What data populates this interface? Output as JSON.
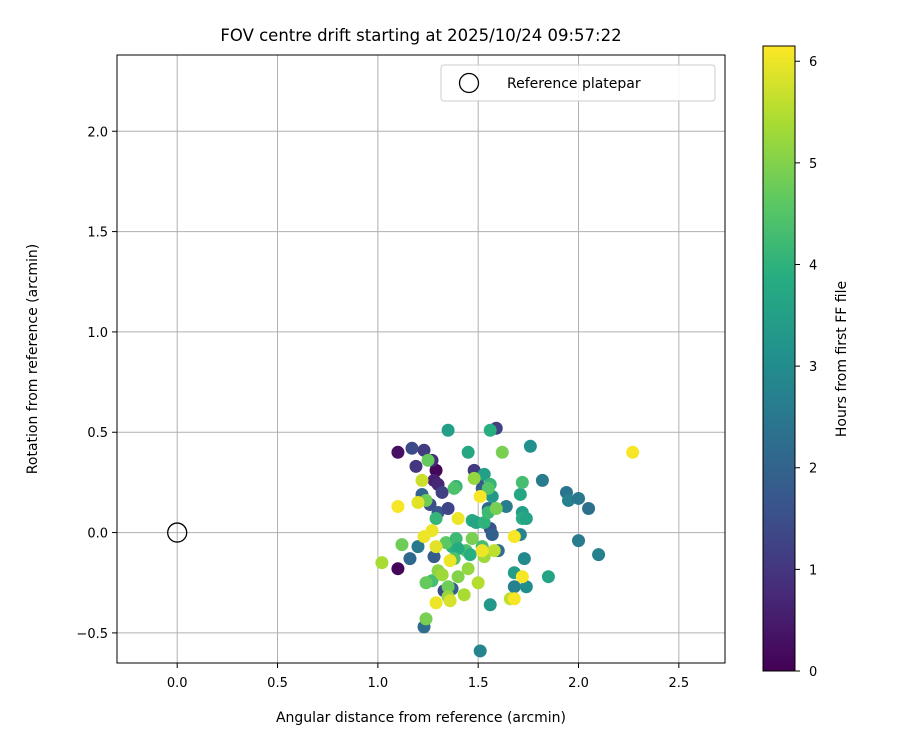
{
  "chart_data": {
    "type": "scatter",
    "title": "FOV centre drift starting at 2025/10/24 09:57:22",
    "xlabel": "Angular distance from reference (arcmin)",
    "ylabel": "Rotation from reference (arcmin)",
    "xlim": [
      -0.3,
      2.73
    ],
    "ylim": [
      -0.65,
      2.38
    ],
    "xticks": [
      0.0,
      0.5,
      1.0,
      1.5,
      2.0,
      2.5
    ],
    "xtick_labels": [
      "0.0",
      "0.5",
      "1.0",
      "1.5",
      "2.0",
      "2.5"
    ],
    "yticks": [
      -0.5,
      0.0,
      0.5,
      1.0,
      1.5,
      2.0
    ],
    "ytick_labels": [
      "−0.5",
      "0.0",
      "0.5",
      "1.0",
      "1.5",
      "2.0"
    ],
    "grid": true,
    "colormap": "viridis",
    "colorbar": {
      "label": "Hours from first FF file",
      "range": [
        0,
        6.15
      ],
      "ticks": [
        0,
        1,
        2,
        3,
        4,
        5,
        6
      ],
      "tick_labels": [
        "0",
        "1",
        "2",
        "3",
        "4",
        "5",
        "6"
      ]
    },
    "legend": {
      "placement": "top-right",
      "entries": [
        {
          "marker": "open-circle",
          "label": "Reference platepar"
        }
      ]
    },
    "reference_point": {
      "x": 0.0,
      "y": 0.0
    },
    "points": [
      {
        "x": 1.1,
        "y": 0.4,
        "h": 0.3
      },
      {
        "x": 1.1,
        "y": -0.18,
        "h": 0.1
      },
      {
        "x": 1.29,
        "y": 0.31,
        "h": 0.1
      },
      {
        "x": 1.17,
        "y": 0.42,
        "h": 1.4
      },
      {
        "x": 1.23,
        "y": 0.41,
        "h": 1.1
      },
      {
        "x": 1.27,
        "y": 0.36,
        "h": 0.8
      },
      {
        "x": 1.19,
        "y": 0.33,
        "h": 1.0
      },
      {
        "x": 1.28,
        "y": 0.26,
        "h": 0.6
      },
      {
        "x": 1.3,
        "y": 0.24,
        "h": 0.7
      },
      {
        "x": 1.32,
        "y": 0.2,
        "h": 1.2
      },
      {
        "x": 1.22,
        "y": 0.19,
        "h": 2.0
      },
      {
        "x": 1.26,
        "y": 0.14,
        "h": 1.5
      },
      {
        "x": 1.3,
        "y": 0.1,
        "h": 1.7
      },
      {
        "x": 1.35,
        "y": 0.12,
        "h": 1.3
      },
      {
        "x": 1.28,
        "y": -0.12,
        "h": 1.8
      },
      {
        "x": 1.33,
        "y": -0.29,
        "h": 1.4
      },
      {
        "x": 1.37,
        "y": -0.28,
        "h": 1.9
      },
      {
        "x": 1.23,
        "y": -0.47,
        "h": 2.2
      },
      {
        "x": 1.48,
        "y": 0.31,
        "h": 1.1
      },
      {
        "x": 1.5,
        "y": 0.27,
        "h": 1.6
      },
      {
        "x": 1.52,
        "y": 0.22,
        "h": 1.8
      },
      {
        "x": 1.55,
        "y": 0.12,
        "h": 2.1
      },
      {
        "x": 1.56,
        "y": 0.02,
        "h": 1.6
      },
      {
        "x": 1.57,
        "y": -0.01,
        "h": 1.9
      },
      {
        "x": 1.59,
        "y": 0.52,
        "h": 1.2
      },
      {
        "x": 1.16,
        "y": -0.13,
        "h": 2.1
      },
      {
        "x": 1.2,
        "y": -0.07,
        "h": 2.5
      },
      {
        "x": 1.64,
        "y": 0.13,
        "h": 2.6
      },
      {
        "x": 1.6,
        "y": -0.09,
        "h": 2.2
      },
      {
        "x": 1.51,
        "y": -0.59,
        "h": 2.8
      },
      {
        "x": 1.68,
        "y": -0.27,
        "h": 2.7
      },
      {
        "x": 1.73,
        "y": -0.13,
        "h": 2.9
      },
      {
        "x": 1.74,
        "y": -0.27,
        "h": 3.0
      },
      {
        "x": 1.71,
        "y": -0.01,
        "h": 2.8
      },
      {
        "x": 1.82,
        "y": 0.26,
        "h": 2.6
      },
      {
        "x": 1.94,
        "y": 0.2,
        "h": 2.4
      },
      {
        "x": 1.95,
        "y": 0.16,
        "h": 2.7
      },
      {
        "x": 2.0,
        "y": 0.17,
        "h": 2.5
      },
      {
        "x": 2.05,
        "y": 0.12,
        "h": 2.3
      },
      {
        "x": 2.0,
        "y": -0.04,
        "h": 2.6
      },
      {
        "x": 2.1,
        "y": -0.11,
        "h": 2.7
      },
      {
        "x": 1.76,
        "y": 0.43,
        "h": 3.1
      },
      {
        "x": 1.85,
        "y": -0.22,
        "h": 3.6
      },
      {
        "x": 1.68,
        "y": -0.2,
        "h": 3.4
      },
      {
        "x": 1.56,
        "y": -0.36,
        "h": 3.3
      },
      {
        "x": 1.71,
        "y": 0.19,
        "h": 3.7
      },
      {
        "x": 1.72,
        "y": 0.1,
        "h": 3.5
      },
      {
        "x": 1.72,
        "y": 0.07,
        "h": 3.9
      },
      {
        "x": 1.74,
        "y": 0.07,
        "h": 3.6
      },
      {
        "x": 1.57,
        "y": 0.18,
        "h": 3.3
      },
      {
        "x": 1.53,
        "y": 0.29,
        "h": 3.5
      },
      {
        "x": 1.45,
        "y": 0.4,
        "h": 3.7
      },
      {
        "x": 1.35,
        "y": 0.51,
        "h": 3.5
      },
      {
        "x": 1.56,
        "y": 0.51,
        "h": 3.9
      },
      {
        "x": 1.72,
        "y": 0.25,
        "h": 4.3
      },
      {
        "x": 1.56,
        "y": 0.24,
        "h": 4.1
      },
      {
        "x": 1.55,
        "y": 0.22,
        "h": 4.5
      },
      {
        "x": 1.39,
        "y": 0.23,
        "h": 4.1
      },
      {
        "x": 1.38,
        "y": 0.22,
        "h": 4.4
      },
      {
        "x": 1.47,
        "y": 0.06,
        "h": 3.8
      },
      {
        "x": 1.49,
        "y": 0.05,
        "h": 3.6
      },
      {
        "x": 1.53,
        "y": 0.05,
        "h": 4.0
      },
      {
        "x": 1.55,
        "y": 0.1,
        "h": 4.2
      },
      {
        "x": 1.44,
        "y": -0.09,
        "h": 4.4
      },
      {
        "x": 1.46,
        "y": -0.11,
        "h": 3.9
      },
      {
        "x": 1.37,
        "y": -0.07,
        "h": 4.0
      },
      {
        "x": 1.34,
        "y": -0.05,
        "h": 4.6
      },
      {
        "x": 1.39,
        "y": -0.03,
        "h": 4.2
      },
      {
        "x": 1.4,
        "y": -0.08,
        "h": 3.8
      },
      {
        "x": 1.38,
        "y": -0.13,
        "h": 4.4
      },
      {
        "x": 1.29,
        "y": 0.07,
        "h": 4.1
      },
      {
        "x": 1.32,
        "y": -0.21,
        "h": 4.5
      },
      {
        "x": 1.27,
        "y": -0.24,
        "h": 4.3
      },
      {
        "x": 1.35,
        "y": -0.27,
        "h": 4.8
      },
      {
        "x": 1.52,
        "y": -0.07,
        "h": 4.3
      },
      {
        "x": 1.24,
        "y": 0.16,
        "h": 4.8
      },
      {
        "x": 1.25,
        "y": 0.36,
        "h": 4.7
      },
      {
        "x": 1.62,
        "y": 0.4,
        "h": 4.9
      },
      {
        "x": 1.59,
        "y": 0.12,
        "h": 4.9
      },
      {
        "x": 1.24,
        "y": -0.25,
        "h": 4.7
      },
      {
        "x": 1.24,
        "y": -0.43,
        "h": 4.9
      },
      {
        "x": 1.12,
        "y": -0.06,
        "h": 4.8
      },
      {
        "x": 1.47,
        "y": -0.03,
        "h": 4.9
      },
      {
        "x": 1.48,
        "y": 0.27,
        "h": 5.2
      },
      {
        "x": 1.3,
        "y": -0.19,
        "h": 5.1
      },
      {
        "x": 1.32,
        "y": -0.21,
        "h": 5.3
      },
      {
        "x": 1.35,
        "y": -0.32,
        "h": 5.2
      },
      {
        "x": 1.43,
        "y": -0.31,
        "h": 5.4
      },
      {
        "x": 1.4,
        "y": -0.22,
        "h": 5.0
      },
      {
        "x": 1.45,
        "y": -0.18,
        "h": 5.2
      },
      {
        "x": 1.5,
        "y": -0.25,
        "h": 5.5
      },
      {
        "x": 1.53,
        "y": -0.12,
        "h": 5.3
      },
      {
        "x": 1.58,
        "y": -0.09,
        "h": 5.6
      },
      {
        "x": 1.66,
        "y": -0.33,
        "h": 5.6
      },
      {
        "x": 1.02,
        "y": -0.15,
        "h": 5.4
      },
      {
        "x": 1.22,
        "y": 0.26,
        "h": 5.7
      },
      {
        "x": 1.2,
        "y": 0.15,
        "h": 5.9
      },
      {
        "x": 1.51,
        "y": 0.18,
        "h": 6.1
      },
      {
        "x": 1.1,
        "y": 0.13,
        "h": 6.1
      },
      {
        "x": 1.27,
        "y": 0.01,
        "h": 6.0
      },
      {
        "x": 1.29,
        "y": -0.07,
        "h": 5.9
      },
      {
        "x": 1.23,
        "y": -0.02,
        "h": 6.0
      },
      {
        "x": 1.36,
        "y": -0.14,
        "h": 6.0
      },
      {
        "x": 1.29,
        "y": -0.35,
        "h": 6.0
      },
      {
        "x": 1.36,
        "y": -0.34,
        "h": 5.8
      },
      {
        "x": 1.4,
        "y": 0.07,
        "h": 6.0
      },
      {
        "x": 1.52,
        "y": -0.09,
        "h": 6.0
      },
      {
        "x": 1.68,
        "y": -0.02,
        "h": 6.1
      },
      {
        "x": 1.72,
        "y": -0.22,
        "h": 6.1
      },
      {
        "x": 1.68,
        "y": -0.33,
        "h": 6.1
      },
      {
        "x": 2.27,
        "y": 0.4,
        "h": 6.1
      }
    ]
  }
}
